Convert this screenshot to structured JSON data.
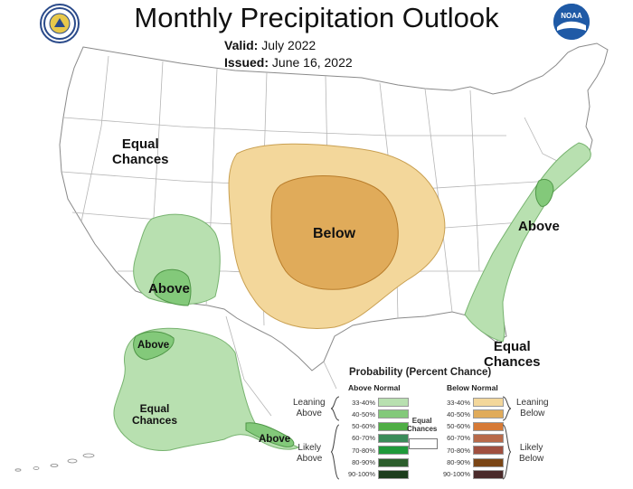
{
  "header": {
    "title": "Monthly Precipitation Outlook",
    "valid_label": "Valid:",
    "valid_value": "July 2022",
    "issued_label": "Issued:",
    "issued_value": "June 16, 2022"
  },
  "logos": {
    "left": "commerce-seal-icon",
    "right_text": "NOAA"
  },
  "map_labels": {
    "west": "Equal\nChances",
    "southwest": "Above",
    "central": "Below",
    "east": "Above",
    "southeast": "Equal\nChances",
    "alaska_north": "Above",
    "alaska_center": "Equal\nChances",
    "alaska_south": "Above"
  },
  "colors": {
    "above_33_40": "#b8e0b0",
    "above_40_50": "#83c97a",
    "below_33_40": "#f3d79b",
    "below_40_50": "#e0ab5a",
    "land": "#ffffff",
    "borders": "#9a9a9a"
  },
  "legend": {
    "title": "Probability (Percent Chance)",
    "above_header": "Above Normal",
    "below_header": "Below Normal",
    "equal_label": "Equal\nChances",
    "leaning_above": "Leaning\nAbove",
    "likely_above": "Likely\nAbove",
    "leaning_below": "Leaning\nBelow",
    "likely_below": "Likely\nBelow",
    "above_rows": [
      {
        "range": "33-40%",
        "color": "#b8e0b0"
      },
      {
        "range": "40-50%",
        "color": "#83c97a"
      },
      {
        "range": "50-60%",
        "color": "#4fae45"
      },
      {
        "range": "60-70%",
        "color": "#3b8c5a"
      },
      {
        "range": "70-80%",
        "color": "#1f9a3a"
      },
      {
        "range": "80-90%",
        "color": "#2c5e2c"
      },
      {
        "range": "90-100%",
        "color": "#1d3d1d"
      }
    ],
    "below_rows": [
      {
        "range": "33-40%",
        "color": "#f3d79b"
      },
      {
        "range": "40-50%",
        "color": "#e0ab5a"
      },
      {
        "range": "50-60%",
        "color": "#d67a36"
      },
      {
        "range": "60-70%",
        "color": "#b86a4a"
      },
      {
        "range": "70-80%",
        "color": "#a05040"
      },
      {
        "range": "80-90%",
        "color": "#7a4515"
      },
      {
        "range": "90-100%",
        "color": "#4a2a2a"
      }
    ]
  }
}
